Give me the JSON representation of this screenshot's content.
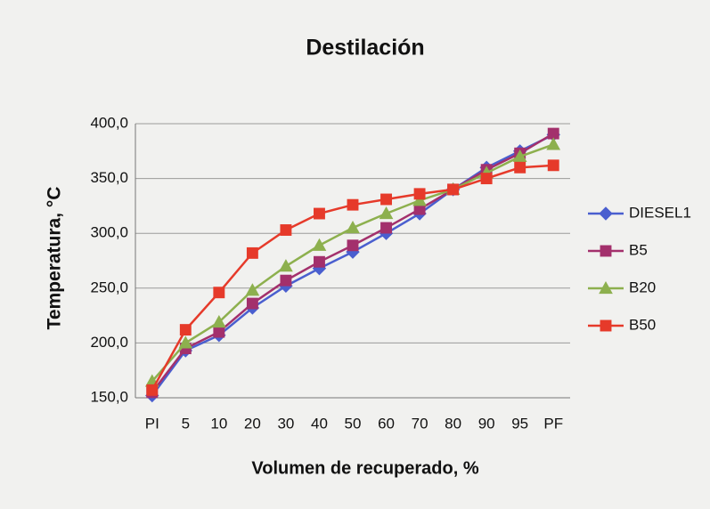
{
  "chart_data": {
    "type": "line",
    "title": "Destilación",
    "x_label": "Volumen de recuperado, %",
    "y_label": "Temperatura, °C",
    "categories": [
      "PI",
      "5",
      "10",
      "20",
      "30",
      "40",
      "50",
      "60",
      "70",
      "80",
      "90",
      "95",
      "PF"
    ],
    "series": [
      {
        "name": "DIESEL1",
        "color": "#4a5fcf",
        "marker": "diamond",
        "values": [
          152,
          193,
          207,
          232,
          252,
          268,
          283,
          300,
          318,
          340,
          360,
          375,
          390
        ]
      },
      {
        "name": "B5",
        "color": "#a3306c",
        "marker": "square",
        "values": [
          155,
          195,
          210,
          236,
          257,
          274,
          289,
          305,
          322,
          340,
          358,
          373,
          391
        ]
      },
      {
        "name": "B20",
        "color": "#8db04e",
        "marker": "triangle",
        "values": [
          165,
          200,
          219,
          248,
          270,
          289,
          305,
          318,
          330,
          340,
          355,
          370,
          381
        ]
      },
      {
        "name": "B50",
        "color": "#e63a2a",
        "marker": "square",
        "values": [
          157,
          212,
          246,
          282,
          303,
          318,
          326,
          331,
          336,
          340,
          350,
          360,
          362
        ]
      }
    ],
    "ylim": [
      150,
      400
    ],
    "yticks": [
      {
        "value": 150,
        "label": "150,0"
      },
      {
        "value": 200,
        "label": "200,0"
      },
      {
        "value": 250,
        "label": "250,0"
      },
      {
        "value": 300,
        "label": "300,0"
      },
      {
        "value": 350,
        "label": "350,0"
      },
      {
        "value": 400,
        "label": "400,0"
      }
    ],
    "grid": true,
    "legend": "right"
  }
}
